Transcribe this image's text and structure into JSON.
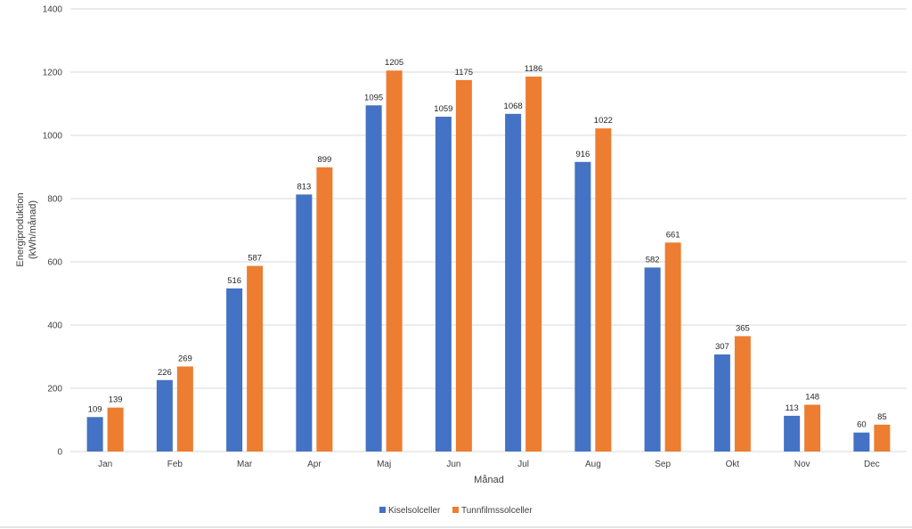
{
  "chart_data": {
    "type": "bar",
    "categories": [
      "Jan",
      "Feb",
      "Mar",
      "Apr",
      "Maj",
      "Jun",
      "Jul",
      "Aug",
      "Sep",
      "Okt",
      "Nov",
      "Dec"
    ],
    "series": [
      {
        "name": "Kiselsolceller",
        "color": "#4472C4",
        "values": [
          109,
          226,
          516,
          813,
          1095,
          1059,
          1068,
          916,
          582,
          307,
          113,
          60
        ]
      },
      {
        "name": "Tunnfilmssolceller",
        "color": "#ED7D31",
        "values": [
          139,
          269,
          587,
          899,
          1205,
          1175,
          1186,
          1022,
          661,
          365,
          148,
          85
        ]
      }
    ],
    "title": "",
    "xlabel": "Månad",
    "ylabel_lines": [
      "Energiproduktion",
      "(kWh/månad)"
    ],
    "ylim": [
      0,
      1400
    ],
    "yticks": [
      0,
      200,
      400,
      600,
      800,
      1000,
      1200,
      1400
    ],
    "grid": true,
    "data_labels": true,
    "legend_position": "bottom"
  }
}
